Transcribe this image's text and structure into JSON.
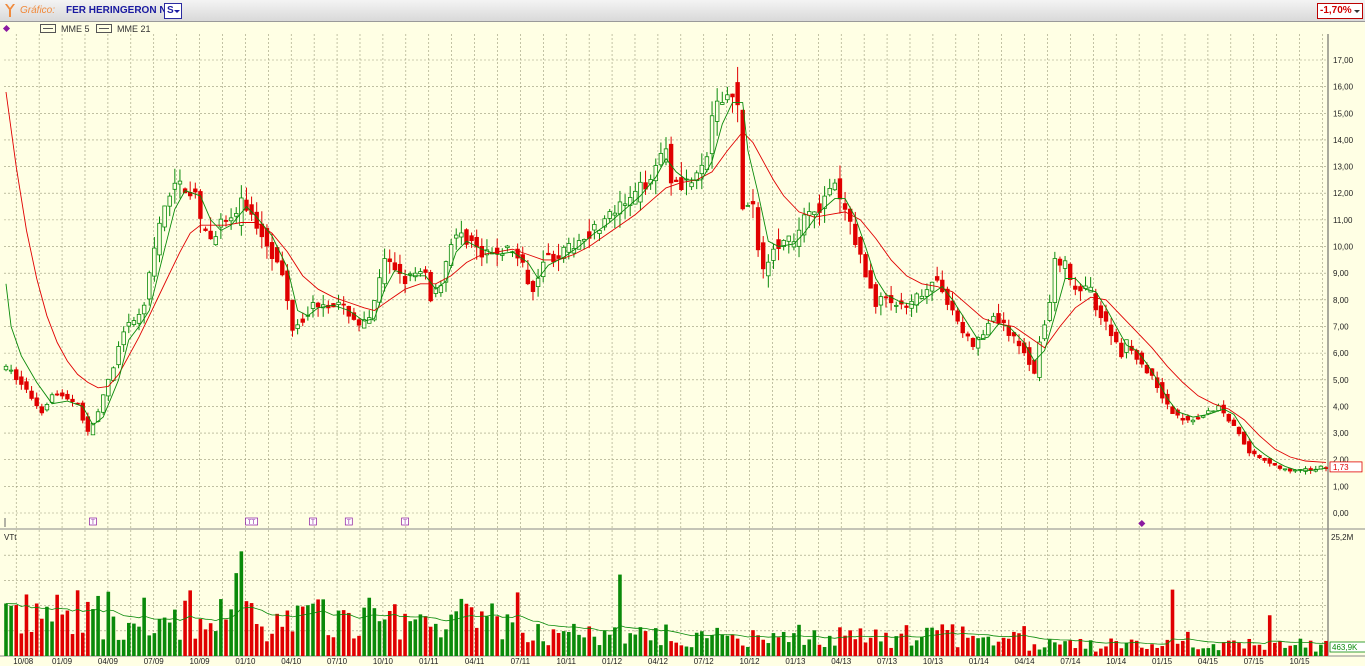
{
  "toolbar": {
    "label": "Gráfico:",
    "ticker": "FER HERINGERON NM",
    "period": "S",
    "change": "-1,70%"
  },
  "legend": {
    "items": [
      "MME  5",
      "MME 21"
    ]
  },
  "volume_panel": {
    "label": "VTt",
    "max_label": "25,2M",
    "last_label": "463,9K"
  },
  "colors": {
    "up": "#0a8a0a",
    "down": "#e00000",
    "ema5": "#0a8a0a",
    "ema21": "#e00000",
    "grid": "#9a9a7a",
    "background": "#ffffe4"
  },
  "chart_data": {
    "type": "candlestick",
    "price_axis": {
      "min": 0,
      "max": 17,
      "ticks": [
        "0,00",
        "1,00",
        "2,00",
        "3,00",
        "4,00",
        "5,00",
        "6,00",
        "7,00",
        "8,00",
        "9,00",
        "10,00",
        "11,00",
        "12,00",
        "13,00",
        "14,00",
        "15,00",
        "16,00",
        "17,00"
      ]
    },
    "last_price_label": "1,73",
    "x_tick_labels": [
      "10/08",
      "01/09",
      "04/09",
      "07/09",
      "10/09",
      "01/10",
      "04/10",
      "07/10",
      "10/10",
      "01/11",
      "04/11",
      "07/11",
      "10/11",
      "01/12",
      "04/12",
      "07/12",
      "10/12",
      "01/13",
      "04/13",
      "07/13",
      "10/13",
      "01/14",
      "04/14",
      "07/14",
      "10/14",
      "01/15",
      "04/15",
      "07/15",
      "10/15"
    ],
    "price_path": [
      [
        0,
        5.5
      ],
      [
        2,
        5.3
      ],
      [
        5,
        4.6
      ],
      [
        8,
        3.8
      ],
      [
        10,
        4.5
      ],
      [
        13,
        4.3
      ],
      [
        15,
        4.1
      ],
      [
        17,
        3.0
      ],
      [
        19,
        3.8
      ],
      [
        22,
        5.5
      ],
      [
        24,
        6.9
      ],
      [
        26,
        7.1
      ],
      [
        28,
        7.9
      ],
      [
        31,
        10.8
      ],
      [
        33,
        12.0
      ],
      [
        35,
        12.4
      ],
      [
        38,
        11.9
      ],
      [
        39,
        10.8
      ],
      [
        41,
        10.3
      ],
      [
        43,
        10.9
      ],
      [
        46,
        11.0
      ],
      [
        47,
        11.9
      ],
      [
        49,
        11.1
      ],
      [
        52,
        10.2
      ],
      [
        55,
        8.9
      ],
      [
        57,
        7.0
      ],
      [
        59,
        7.3
      ],
      [
        61,
        7.8
      ],
      [
        63,
        7.9
      ],
      [
        66,
        7.8
      ],
      [
        68,
        7.5
      ],
      [
        70,
        7.1
      ],
      [
        72,
        7.2
      ],
      [
        73,
        8.0
      ],
      [
        75,
        9.4
      ],
      [
        77,
        9.2
      ],
      [
        79,
        8.8
      ],
      [
        81,
        8.9
      ],
      [
        83,
        9.0
      ],
      [
        84,
        8.1
      ],
      [
        86,
        8.7
      ],
      [
        88,
        10.2
      ],
      [
        90,
        10.4
      ],
      [
        92,
        10.2
      ],
      [
        94,
        9.6
      ],
      [
        97,
        9.8
      ],
      [
        100,
        9.9
      ],
      [
        102,
        9.2
      ],
      [
        104,
        8.4
      ],
      [
        106,
        9.6
      ],
      [
        108,
        9.6
      ],
      [
        111,
        9.9
      ],
      [
        114,
        10.4
      ],
      [
        117,
        10.8
      ],
      [
        120,
        11.3
      ],
      [
        123,
        11.7
      ],
      [
        126,
        12.4
      ],
      [
        128,
        13.1
      ],
      [
        130,
        13.8
      ],
      [
        131,
        12.6
      ],
      [
        133,
        12.4
      ],
      [
        136,
        12.5
      ],
      [
        138,
        13.4
      ],
      [
        139,
        14.8
      ],
      [
        141,
        15.5
      ],
      [
        143,
        15.9
      ],
      [
        144,
        15.2
      ],
      [
        145,
        11.5
      ],
      [
        147,
        11.4
      ],
      [
        148,
        10.1
      ],
      [
        149,
        9.1
      ],
      [
        151,
        10.1
      ],
      [
        154,
        10.2
      ],
      [
        155,
        10.0
      ],
      [
        157,
        11.3
      ],
      [
        160,
        11.5
      ],
      [
        162,
        12.0
      ],
      [
        163,
        12.3
      ],
      [
        164,
        11.7
      ],
      [
        166,
        10.9
      ],
      [
        168,
        9.6
      ],
      [
        169,
        8.9
      ],
      [
        171,
        7.9
      ],
      [
        173,
        8.1
      ],
      [
        175,
        7.8
      ],
      [
        177,
        7.6
      ],
      [
        180,
        8.3
      ],
      [
        182,
        8.7
      ],
      [
        184,
        8.4
      ],
      [
        186,
        7.6
      ],
      [
        188,
        6.8
      ],
      [
        190,
        6.3
      ],
      [
        192,
        6.7
      ],
      [
        194,
        7.4
      ],
      [
        196,
        7.0
      ],
      [
        198,
        6.5
      ],
      [
        200,
        6.1
      ],
      [
        202,
        5.2
      ],
      [
        203,
        6.5
      ],
      [
        205,
        7.9
      ],
      [
        206,
        9.4
      ],
      [
        208,
        9.3
      ],
      [
        209,
        8.6
      ],
      [
        211,
        8.3
      ],
      [
        213,
        8.4
      ],
      [
        214,
        7.8
      ],
      [
        215,
        7.4
      ],
      [
        217,
        6.8
      ],
      [
        219,
        6.0
      ],
      [
        220,
        6.4
      ],
      [
        222,
        5.9
      ],
      [
        224,
        5.3
      ],
      [
        226,
        4.8
      ],
      [
        228,
        4.0
      ],
      [
        230,
        3.6
      ],
      [
        232,
        3.5
      ],
      [
        234,
        3.6
      ],
      [
        236,
        3.8
      ],
      [
        238,
        4.0
      ],
      [
        240,
        3.5
      ],
      [
        242,
        3.0
      ],
      [
        244,
        2.3
      ],
      [
        246,
        2.1
      ],
      [
        248,
        1.9
      ],
      [
        250,
        1.7
      ],
      [
        252,
        1.55
      ],
      [
        254,
        1.6
      ],
      [
        256,
        1.62
      ],
      [
        258,
        1.73
      ]
    ],
    "ema5_path": [
      [
        0,
        8.6
      ],
      [
        1,
        7.0
      ],
      [
        3,
        5.9
      ],
      [
        6,
        4.9
      ],
      [
        9,
        4.1
      ],
      [
        12,
        4.2
      ],
      [
        15,
        4.0
      ],
      [
        17,
        3.3
      ],
      [
        19,
        3.6
      ],
      [
        22,
        5.0
      ],
      [
        24,
        6.5
      ],
      [
        26,
        7.0
      ],
      [
        28,
        7.6
      ],
      [
        31,
        9.9
      ],
      [
        33,
        11.4
      ],
      [
        35,
        12.1
      ],
      [
        38,
        11.9
      ],
      [
        40,
        11.0
      ],
      [
        42,
        10.6
      ],
      [
        44,
        10.8
      ],
      [
        47,
        11.5
      ],
      [
        49,
        11.1
      ],
      [
        52,
        10.4
      ],
      [
        55,
        9.2
      ],
      [
        57,
        7.6
      ],
      [
        59,
        7.4
      ],
      [
        61,
        7.7
      ],
      [
        64,
        7.8
      ],
      [
        67,
        7.6
      ],
      [
        70,
        7.2
      ],
      [
        72,
        7.3
      ],
      [
        74,
        8.4
      ],
      [
        76,
        9.1
      ],
      [
        79,
        8.9
      ],
      [
        82,
        8.9
      ],
      [
        84,
        8.4
      ],
      [
        86,
        8.7
      ],
      [
        88,
        9.8
      ],
      [
        90,
        10.2
      ],
      [
        93,
        9.9
      ],
      [
        96,
        9.7
      ],
      [
        99,
        9.8
      ],
      [
        102,
        9.4
      ],
      [
        104,
        8.8
      ],
      [
        106,
        9.3
      ],
      [
        109,
        9.6
      ],
      [
        112,
        10.0
      ],
      [
        115,
        10.5
      ],
      [
        118,
        10.9
      ],
      [
        121,
        11.4
      ],
      [
        124,
        11.9
      ],
      [
        127,
        12.6
      ],
      [
        129,
        13.3
      ],
      [
        131,
        12.8
      ],
      [
        133,
        12.5
      ],
      [
        136,
        12.5
      ],
      [
        138,
        13.2
      ],
      [
        140,
        14.6
      ],
      [
        142,
        15.4
      ],
      [
        144,
        15.4
      ],
      [
        145,
        13.6
      ],
      [
        147,
        12.0
      ],
      [
        149,
        10.2
      ],
      [
        151,
        10.0
      ],
      [
        154,
        10.1
      ],
      [
        156,
        10.5
      ],
      [
        159,
        11.3
      ],
      [
        162,
        11.8
      ],
      [
        164,
        11.8
      ],
      [
        166,
        11.1
      ],
      [
        168,
        10.0
      ],
      [
        170,
        8.8
      ],
      [
        172,
        8.2
      ],
      [
        175,
        7.9
      ],
      [
        178,
        7.8
      ],
      [
        180,
        8.1
      ],
      [
        183,
        8.5
      ],
      [
        185,
        8.0
      ],
      [
        188,
        7.1
      ],
      [
        190,
        6.5
      ],
      [
        192,
        6.6
      ],
      [
        194,
        7.1
      ],
      [
        196,
        7.0
      ],
      [
        199,
        6.4
      ],
      [
        201,
        5.7
      ],
      [
        203,
        6.1
      ],
      [
        205,
        7.4
      ],
      [
        207,
        8.8
      ],
      [
        209,
        8.8
      ],
      [
        211,
        8.4
      ],
      [
        213,
        8.3
      ],
      [
        215,
        7.7
      ],
      [
        217,
        7.0
      ],
      [
        219,
        6.3
      ],
      [
        221,
        6.1
      ],
      [
        223,
        5.6
      ],
      [
        225,
        5.0
      ],
      [
        227,
        4.3
      ],
      [
        229,
        3.8
      ],
      [
        232,
        3.6
      ],
      [
        235,
        3.7
      ],
      [
        238,
        3.9
      ],
      [
        240,
        3.7
      ],
      [
        242,
        3.1
      ],
      [
        244,
        2.5
      ],
      [
        246,
        2.2
      ],
      [
        248,
        1.95
      ],
      [
        250,
        1.75
      ],
      [
        252,
        1.62
      ],
      [
        255,
        1.6
      ],
      [
        258,
        1.68
      ]
    ],
    "ema21_path": [
      [
        0,
        15.8
      ],
      [
        2,
        13.0
      ],
      [
        4,
        10.6
      ],
      [
        6,
        8.8
      ],
      [
        8,
        7.4
      ],
      [
        10,
        6.4
      ],
      [
        12,
        5.7
      ],
      [
        14,
        5.2
      ],
      [
        16,
        4.9
      ],
      [
        18,
        4.7
      ],
      [
        20,
        4.75
      ],
      [
        22,
        5.2
      ],
      [
        24,
        5.9
      ],
      [
        26,
        6.6
      ],
      [
        28,
        7.4
      ],
      [
        30,
        8.2
      ],
      [
        32,
        9.0
      ],
      [
        34,
        9.8
      ],
      [
        36,
        10.5
      ],
      [
        38,
        10.8
      ],
      [
        40,
        10.8
      ],
      [
        43,
        10.8
      ],
      [
        46,
        10.9
      ],
      [
        49,
        10.9
      ],
      [
        52,
        10.5
      ],
      [
        55,
        9.8
      ],
      [
        58,
        8.9
      ],
      [
        61,
        8.4
      ],
      [
        64,
        8.1
      ],
      [
        67,
        7.9
      ],
      [
        70,
        7.7
      ],
      [
        72,
        7.6
      ],
      [
        75,
        8.0
      ],
      [
        78,
        8.4
      ],
      [
        81,
        8.6
      ],
      [
        84,
        8.6
      ],
      [
        87,
        8.9
      ],
      [
        90,
        9.4
      ],
      [
        93,
        9.7
      ],
      [
        96,
        9.8
      ],
      [
        99,
        9.9
      ],
      [
        102,
        9.7
      ],
      [
        105,
        9.5
      ],
      [
        108,
        9.5
      ],
      [
        111,
        9.7
      ],
      [
        114,
        10.0
      ],
      [
        117,
        10.4
      ],
      [
        120,
        10.8
      ],
      [
        123,
        11.2
      ],
      [
        126,
        11.7
      ],
      [
        129,
        12.2
      ],
      [
        132,
        12.4
      ],
      [
        135,
        12.5
      ],
      [
        138,
        12.8
      ],
      [
        141,
        13.6
      ],
      [
        144,
        14.3
      ],
      [
        146,
        13.9
      ],
      [
        148,
        13.2
      ],
      [
        150,
        12.5
      ],
      [
        152,
        11.9
      ],
      [
        155,
        11.3
      ],
      [
        158,
        11.1
      ],
      [
        161,
        11.2
      ],
      [
        164,
        11.3
      ],
      [
        167,
        11.0
      ],
      [
        170,
        10.3
      ],
      [
        173,
        9.5
      ],
      [
        176,
        8.9
      ],
      [
        179,
        8.6
      ],
      [
        182,
        8.5
      ],
      [
        185,
        8.3
      ],
      [
        188,
        7.8
      ],
      [
        191,
        7.3
      ],
      [
        194,
        7.1
      ],
      [
        197,
        7.0
      ],
      [
        200,
        6.6
      ],
      [
        203,
        6.2
      ],
      [
        206,
        7.0
      ],
      [
        209,
        7.7
      ],
      [
        212,
        8.1
      ],
      [
        215,
        8.0
      ],
      [
        218,
        7.4
      ],
      [
        221,
        6.8
      ],
      [
        224,
        6.2
      ],
      [
        227,
        5.5
      ],
      [
        230,
        4.9
      ],
      [
        233,
        4.4
      ],
      [
        236,
        4.1
      ],
      [
        239,
        3.9
      ],
      [
        242,
        3.5
      ],
      [
        245,
        2.9
      ],
      [
        248,
        2.4
      ],
      [
        251,
        2.1
      ],
      [
        254,
        1.95
      ],
      [
        258,
        1.9
      ]
    ],
    "volume_axis": {
      "max_label": "25,2M",
      "last_label": "463,9K"
    },
    "event_markers": [
      {
        "type": "T",
        "x": 17
      },
      {
        "type": "TT",
        "x": 48
      },
      {
        "type": "T",
        "x": 60
      },
      {
        "type": "T",
        "x": 67
      },
      {
        "type": "T",
        "x": 78
      }
    ]
  }
}
